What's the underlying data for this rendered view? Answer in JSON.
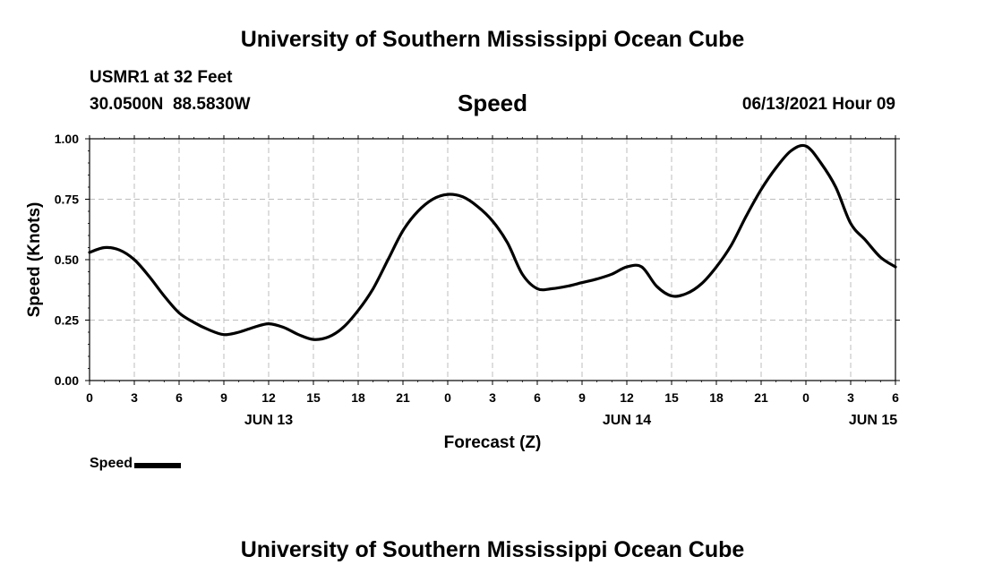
{
  "header": {
    "title": "University of Southern Mississippi Ocean Cube",
    "station": "USMR1 at 32 Feet",
    "coordinates": "30.0500N  88.5830W",
    "variable": "Speed",
    "datetime": "06/13/2021 Hour 09"
  },
  "footer": {
    "title": "University of Southern Mississippi Ocean Cube"
  },
  "legend": {
    "label": "Speed"
  },
  "chart_data": {
    "type": "line",
    "title": "Speed",
    "xlabel": "Forecast (Z)",
    "ylabel": "Speed (Knots)",
    "xlim": [
      0,
      54
    ],
    "ylim": [
      0,
      1
    ],
    "grid": true,
    "legend_position": "bottom-left",
    "line_color": "#000000",
    "x_ticks": [
      {
        "x": 0,
        "label": "0"
      },
      {
        "x": 3,
        "label": "3"
      },
      {
        "x": 6,
        "label": "6"
      },
      {
        "x": 9,
        "label": "9"
      },
      {
        "x": 12,
        "label": "12"
      },
      {
        "x": 15,
        "label": "15"
      },
      {
        "x": 18,
        "label": "18"
      },
      {
        "x": 21,
        "label": "21"
      },
      {
        "x": 24,
        "label": "0"
      },
      {
        "x": 27,
        "label": "3"
      },
      {
        "x": 30,
        "label": "6"
      },
      {
        "x": 33,
        "label": "9"
      },
      {
        "x": 36,
        "label": "12"
      },
      {
        "x": 39,
        "label": "15"
      },
      {
        "x": 42,
        "label": "18"
      },
      {
        "x": 45,
        "label": "21"
      },
      {
        "x": 48,
        "label": "0"
      },
      {
        "x": 51,
        "label": "3"
      },
      {
        "x": 54,
        "label": "6"
      }
    ],
    "date_labels": [
      {
        "x": 12,
        "label": "JUN 13"
      },
      {
        "x": 36,
        "label": "JUN 14"
      },
      {
        "x": 52.5,
        "label": "JUN 15"
      }
    ],
    "y_ticks": [
      {
        "y": 0,
        "label": "0.00"
      },
      {
        "y": 0.25,
        "label": "0.25"
      },
      {
        "y": 0.5,
        "label": "0.50"
      },
      {
        "y": 0.75,
        "label": "0.75"
      },
      {
        "y": 1,
        "label": "1.00"
      }
    ],
    "series": [
      {
        "name": "Speed",
        "x": [
          0,
          1,
          2,
          3,
          4,
          5,
          6,
          7,
          8,
          9,
          10,
          11,
          12,
          13,
          14,
          15,
          16,
          17,
          18,
          19,
          20,
          21,
          22,
          23,
          24,
          25,
          26,
          27,
          28,
          29,
          30,
          31,
          32,
          33,
          34,
          35,
          36,
          37,
          38,
          39,
          40,
          41,
          42,
          43,
          44,
          45,
          46,
          47,
          48,
          49,
          50,
          51,
          52,
          53,
          54
        ],
        "values": [
          0.53,
          0.55,
          0.54,
          0.5,
          0.43,
          0.35,
          0.28,
          0.24,
          0.21,
          0.19,
          0.2,
          0.22,
          0.235,
          0.22,
          0.19,
          0.17,
          0.18,
          0.22,
          0.29,
          0.38,
          0.5,
          0.62,
          0.7,
          0.75,
          0.77,
          0.76,
          0.72,
          0.66,
          0.57,
          0.44,
          0.38,
          0.38,
          0.39,
          0.405,
          0.42,
          0.44,
          0.47,
          0.47,
          0.39,
          0.35,
          0.36,
          0.4,
          0.47,
          0.56,
          0.68,
          0.79,
          0.88,
          0.95,
          0.97,
          0.9,
          0.8,
          0.65,
          0.58,
          0.51,
          0.47
        ]
      }
    ]
  }
}
